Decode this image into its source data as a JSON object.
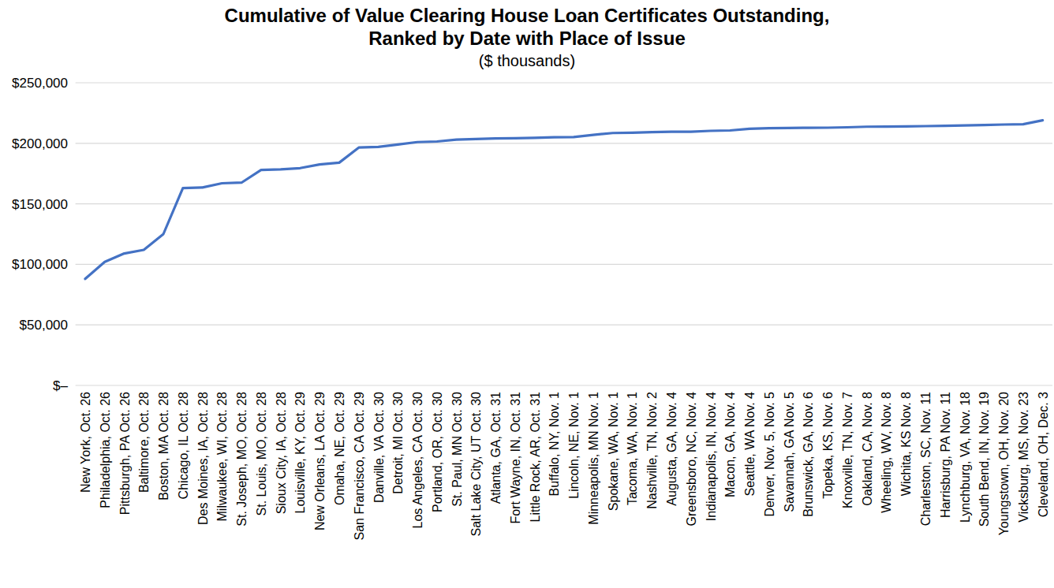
{
  "chart_data": {
    "type": "line",
    "title": "Cumulative of Value Clearing House Loan Certificates Outstanding, Ranked by Date with Place of Issue",
    "subtitle": "($ thousands)",
    "categories": [
      "New York, Oct. 26",
      "Philadelphia, Oct. 26",
      "Pittsburgh, PA Oct. 26",
      "Baltimore, Oct. 28",
      "Boston, MA Oct. 28",
      "Chicago, IL Oct. 28",
      "Des Moines, IA, Oct. 28",
      "Milwaukee, WI, Oct. 28",
      "St. Joseph, MO, Oct. 28",
      "St. Louis, MO, Oct. 28",
      "Sioux City, IA, Oct. 28",
      "Louisville, KY, Oct. 29",
      "New Orleans, LA Oct. 29",
      "Omaha, NE, Oct. 29",
      "San Francisco, CA Oct. 29",
      "Danville, VA Oct. 30",
      "Detroit, MI Oct. 30",
      "Los Angeles, CA Oct. 30",
      "Portland, OR, Oct. 30",
      "St. Paul, MN Oct. 30",
      "Salt Lake City, UT Oct. 30",
      "Atlanta, GA, Oct. 31",
      "Fort Wayne, IN, Oct. 31",
      "Little Rock, AR, Oct. 31",
      "Buffalo, NY, Nov. 1",
      "Lincoln, NE, Nov. 1",
      "Minneapolis, MN Nov. 1",
      "Spokane, WA, Nov. 1",
      "Tacoma, WA, Nov. 1",
      "Nashville, TN, Nov. 2",
      "Augusta, GA, Nov. 4",
      "Greensboro, NC, Nov. 4",
      "Indianapolis, IN, Nov. 4",
      "Macon, GA, Nov. 4",
      "Seattle, WA Nov. 4",
      "Denver, Nov. 5, Nov. 5",
      "Savannah, GA Nov. 5",
      "Brunswick, GA, Nov. 6",
      "Topeka, KS, Nov. 6",
      "Knoxville, TN, Nov. 7",
      "Oakland, CA, Nov. 8",
      "Wheeling, WV, Nov. 8",
      "Wichita, KS Nov. 8",
      "Charleston, SC, Nov. 11",
      "Harrisburg, PA Nov. 11",
      "Lynchburg, VA, Nov. 18",
      "South Bend, IN, Nov. 19",
      "Youngstown, OH, Nov. 20",
      "Vicksburg, MS, Nov. 23",
      "Cleveland, OH, Dec. 3"
    ],
    "values": [
      88000,
      102000,
      109000,
      112000,
      125000,
      163000,
      163500,
      167000,
      167500,
      178000,
      178500,
      179500,
      182500,
      184000,
      196500,
      197000,
      199000,
      201000,
      201500,
      203000,
      203500,
      204000,
      204200,
      204500,
      205000,
      205200,
      207000,
      208500,
      208700,
      209200,
      209500,
      209600,
      210300,
      210600,
      212000,
      212500,
      212700,
      212800,
      212900,
      213200,
      213700,
      213800,
      213900,
      214200,
      214500,
      214800,
      215100,
      215500,
      215700,
      219000
    ],
    "color": "#4472c4",
    "ylim": [
      0,
      250000
    ],
    "yticks": [
      {
        "value": 0,
        "label": "$–"
      },
      {
        "value": 50000,
        "label": "$50,000"
      },
      {
        "value": 100000,
        "label": "$100,000"
      },
      {
        "value": 150000,
        "label": "$150,000"
      },
      {
        "value": 200000,
        "label": "$200,000"
      },
      {
        "value": 250000,
        "label": "$250,000"
      }
    ],
    "grid": true
  }
}
